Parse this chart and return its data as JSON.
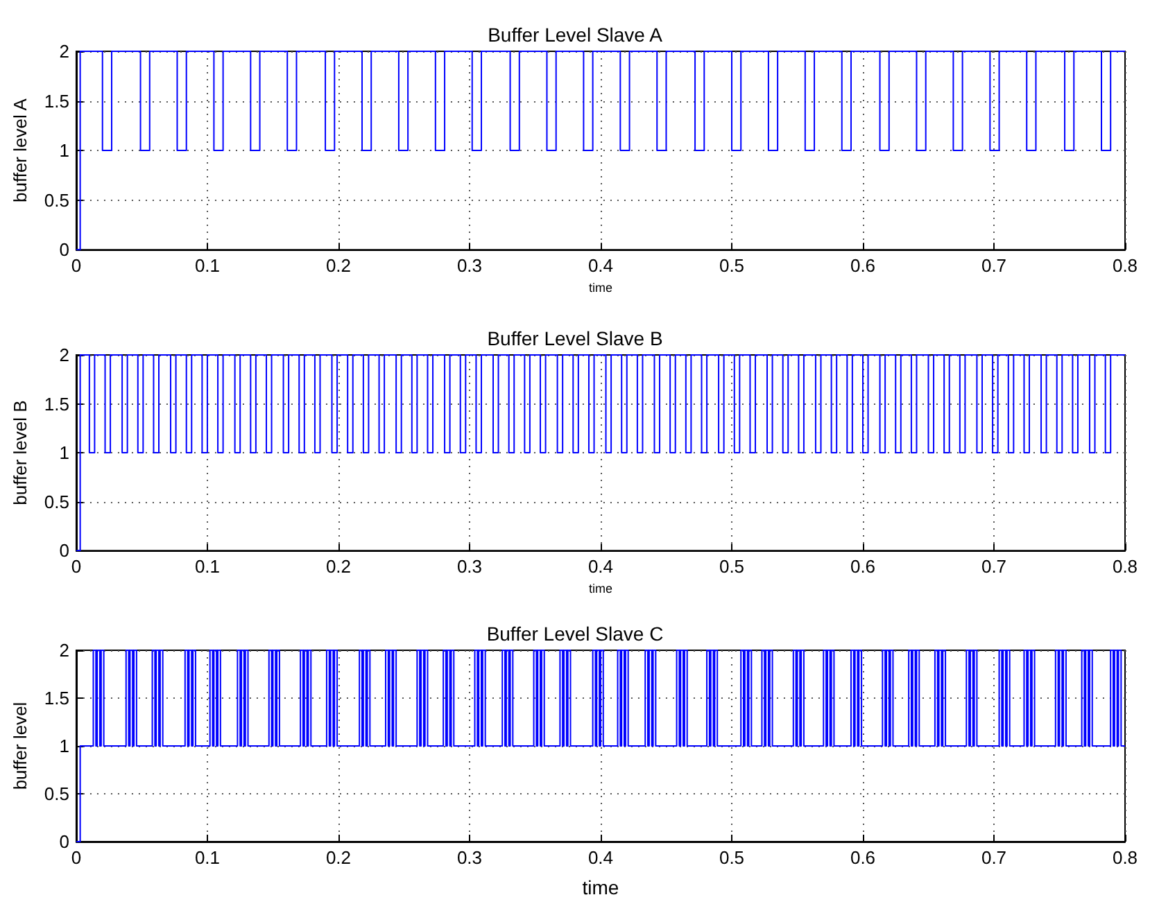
{
  "chart_data": [
    {
      "type": "step",
      "title": "Buffer Level Slave A",
      "xlabel": "time",
      "ylabel": "buffer level A",
      "xlim": [
        0,
        0.8
      ],
      "ylim": [
        0,
        2
      ],
      "xticks": [
        0,
        0.1,
        0.2,
        0.3,
        0.4,
        0.5,
        0.6,
        0.7,
        0.8
      ],
      "yticks": [
        0,
        0.5,
        1,
        1.5,
        2
      ],
      "grid": true,
      "marker": "none",
      "line_style": "solid",
      "x": [
        0,
        0.003,
        0.02,
        0.027,
        0.049,
        0.056,
        0.077,
        0.084,
        0.105,
        0.112,
        0.133,
        0.14,
        0.161,
        0.168,
        0.19,
        0.197,
        0.218,
        0.225,
        0.246,
        0.253,
        0.274,
        0.281,
        0.302,
        0.309,
        0.331,
        0.338,
        0.359,
        0.366,
        0.387,
        0.394,
        0.415,
        0.422,
        0.443,
        0.45,
        0.472,
        0.479,
        0.5,
        0.507,
        0.528,
        0.535,
        0.556,
        0.563,
        0.584,
        0.591,
        0.613,
        0.62,
        0.641,
        0.648,
        0.669,
        0.676,
        0.697,
        0.704,
        0.725,
        0.732,
        0.754,
        0.761,
        0.782,
        0.789,
        0.8
      ],
      "series": [
        {
          "color": "#0000ff",
          "values": [
            0,
            2,
            1,
            2,
            1,
            2,
            1,
            2,
            1,
            2,
            1,
            2,
            1,
            2,
            1,
            2,
            1,
            2,
            1,
            2,
            1,
            2,
            1,
            2,
            1,
            2,
            1,
            2,
            1,
            2,
            1,
            2,
            1,
            2,
            1,
            2,
            1,
            2,
            1,
            2,
            1,
            2,
            1,
            2,
            1,
            2,
            1,
            2,
            1,
            2,
            1,
            2,
            1,
            2,
            1,
            2,
            1,
            2,
            2
          ]
        }
      ]
    },
    {
      "type": "step",
      "title": "Buffer Level Slave B",
      "xlabel": "time",
      "ylabel": "buffer level B",
      "xlim": [
        0,
        0.8
      ],
      "ylim": [
        0,
        2
      ],
      "xticks": [
        0,
        0.1,
        0.2,
        0.3,
        0.4,
        0.5,
        0.6,
        0.7,
        0.8
      ],
      "yticks": [
        0,
        0.5,
        1,
        1.5,
        2
      ],
      "grid": true,
      "marker": "none",
      "line_style": "solid",
      "x": [
        0,
        0.003,
        0.01,
        0.014,
        0.022,
        0.026,
        0.035,
        0.039,
        0.047,
        0.051,
        0.059,
        0.063,
        0.072,
        0.076,
        0.084,
        0.088,
        0.096,
        0.1,
        0.108,
        0.112,
        0.121,
        0.125,
        0.133,
        0.137,
        0.145,
        0.149,
        0.158,
        0.162,
        0.17,
        0.174,
        0.182,
        0.186,
        0.195,
        0.199,
        0.207,
        0.211,
        0.219,
        0.223,
        0.231,
        0.235,
        0.244,
        0.248,
        0.256,
        0.26,
        0.268,
        0.272,
        0.281,
        0.285,
        0.293,
        0.297,
        0.305,
        0.309,
        0.318,
        0.322,
        0.33,
        0.334,
        0.342,
        0.346,
        0.354,
        0.358,
        0.367,
        0.371,
        0.379,
        0.383,
        0.391,
        0.395,
        0.404,
        0.408,
        0.416,
        0.42,
        0.428,
        0.432,
        0.441,
        0.445,
        0.453,
        0.457,
        0.465,
        0.469,
        0.477,
        0.481,
        0.49,
        0.494,
        0.502,
        0.506,
        0.514,
        0.518,
        0.527,
        0.531,
        0.539,
        0.543,
        0.551,
        0.555,
        0.564,
        0.568,
        0.576,
        0.58,
        0.588,
        0.592,
        0.6,
        0.604,
        0.613,
        0.617,
        0.625,
        0.629,
        0.637,
        0.641,
        0.65,
        0.654,
        0.662,
        0.666,
        0.674,
        0.678,
        0.687,
        0.691,
        0.699,
        0.703,
        0.711,
        0.715,
        0.723,
        0.727,
        0.736,
        0.74,
        0.748,
        0.752,
        0.76,
        0.764,
        0.773,
        0.777,
        0.785,
        0.789,
        0.8
      ],
      "series": [
        {
          "color": "#0000ff",
          "values": [
            0,
            2,
            1,
            2,
            1,
            2,
            1,
            2,
            1,
            2,
            1,
            2,
            1,
            2,
            1,
            2,
            1,
            2,
            1,
            2,
            1,
            2,
            1,
            2,
            1,
            2,
            1,
            2,
            1,
            2,
            1,
            2,
            1,
            2,
            1,
            2,
            1,
            2,
            1,
            2,
            1,
            2,
            1,
            2,
            1,
            2,
            1,
            2,
            1,
            2,
            1,
            2,
            1,
            2,
            1,
            2,
            1,
            2,
            1,
            2,
            1,
            2,
            1,
            2,
            1,
            2,
            1,
            2,
            1,
            2,
            1,
            2,
            1,
            2,
            1,
            2,
            1,
            2,
            1,
            2,
            1,
            2,
            1,
            2,
            1,
            2,
            1,
            2,
            1,
            2,
            1,
            2,
            1,
            2,
            1,
            2,
            1,
            2,
            1,
            2,
            1,
            2,
            1,
            2,
            1,
            2,
            1,
            2,
            1,
            2,
            1,
            2,
            1,
            2,
            1,
            2,
            1,
            2,
            1,
            2,
            1,
            2,
            1,
            2,
            1,
            2,
            1,
            2,
            1,
            2,
            2
          ]
        }
      ]
    },
    {
      "type": "step",
      "title": "Buffer Level Slave C",
      "xlabel": "time",
      "ylabel": "buffer level",
      "xlim": [
        0,
        0.8
      ],
      "ylim": [
        0,
        2
      ],
      "xticks": [
        0,
        0.1,
        0.2,
        0.3,
        0.4,
        0.5,
        0.6,
        0.7,
        0.8
      ],
      "yticks": [
        0,
        0.5,
        1,
        1.5,
        2
      ],
      "grid": true,
      "marker": "none",
      "line_style": "solid",
      "x": [
        0,
        0.003,
        0.013,
        0.015,
        0.016,
        0.018,
        0.019,
        0.021,
        0.038,
        0.04,
        0.041,
        0.043,
        0.044,
        0.046,
        0.058,
        0.06,
        0.061,
        0.063,
        0.064,
        0.066,
        0.083,
        0.085,
        0.086,
        0.088,
        0.089,
        0.091,
        0.102,
        0.104,
        0.105,
        0.107,
        0.108,
        0.11,
        0.123,
        0.125,
        0.126,
        0.128,
        0.129,
        0.131,
        0.147,
        0.149,
        0.15,
        0.152,
        0.153,
        0.155,
        0.171,
        0.173,
        0.174,
        0.176,
        0.177,
        0.179,
        0.191,
        0.193,
        0.194,
        0.196,
        0.197,
        0.199,
        0.216,
        0.218,
        0.219,
        0.221,
        0.222,
        0.224,
        0.236,
        0.238,
        0.239,
        0.241,
        0.242,
        0.244,
        0.26,
        0.262,
        0.263,
        0.265,
        0.266,
        0.268,
        0.28,
        0.282,
        0.283,
        0.285,
        0.286,
        0.288,
        0.304,
        0.306,
        0.307,
        0.309,
        0.31,
        0.312,
        0.325,
        0.327,
        0.328,
        0.33,
        0.331,
        0.333,
        0.349,
        0.351,
        0.352,
        0.354,
        0.355,
        0.357,
        0.369,
        0.371,
        0.372,
        0.374,
        0.375,
        0.377,
        0.394,
        0.396,
        0.397,
        0.399,
        0.4,
        0.402,
        0.413,
        0.415,
        0.416,
        0.418,
        0.419,
        0.421,
        0.434,
        0.436,
        0.437,
        0.439,
        0.44,
        0.442,
        0.458,
        0.46,
        0.461,
        0.463,
        0.464,
        0.466,
        0.481,
        0.483,
        0.484,
        0.486,
        0.487,
        0.489,
        0.507,
        0.509,
        0.51,
        0.512,
        0.513,
        0.515,
        0.523,
        0.525,
        0.526,
        0.528,
        0.529,
        0.531,
        0.547,
        0.549,
        0.55,
        0.552,
        0.553,
        0.555,
        0.57,
        0.572,
        0.573,
        0.575,
        0.576,
        0.578,
        0.591,
        0.593,
        0.594,
        0.596,
        0.597,
        0.599,
        0.615,
        0.617,
        0.618,
        0.62,
        0.621,
        0.623,
        0.635,
        0.637,
        0.638,
        0.64,
        0.641,
        0.643,
        0.655,
        0.657,
        0.658,
        0.66,
        0.661,
        0.663,
        0.679,
        0.681,
        0.682,
        0.684,
        0.685,
        0.687,
        0.704,
        0.706,
        0.707,
        0.709,
        0.71,
        0.712,
        0.723,
        0.725,
        0.726,
        0.728,
        0.729,
        0.731,
        0.747,
        0.749,
        0.75,
        0.752,
        0.753,
        0.755,
        0.767,
        0.769,
        0.77,
        0.772,
        0.773,
        0.775,
        0.789,
        0.791,
        0.792,
        0.794,
        0.795,
        0.797,
        0.8
      ],
      "series": [
        {
          "color": "#0000ff",
          "values": [
            0,
            1,
            2,
            1,
            2,
            1,
            2,
            1,
            2,
            1,
            2,
            1,
            2,
            1,
            2,
            1,
            2,
            1,
            2,
            1,
            2,
            1,
            2,
            1,
            2,
            1,
            2,
            1,
            2,
            1,
            2,
            1,
            2,
            1,
            2,
            1,
            2,
            1,
            2,
            1,
            2,
            1,
            2,
            1,
            2,
            1,
            2,
            1,
            2,
            1,
            2,
            1,
            2,
            1,
            2,
            1,
            2,
            1,
            2,
            1,
            2,
            1,
            2,
            1,
            2,
            1,
            2,
            1,
            2,
            1,
            2,
            1,
            2,
            1,
            2,
            1,
            2,
            1,
            2,
            1,
            2,
            1,
            2,
            1,
            2,
            1,
            2,
            1,
            2,
            1,
            2,
            1,
            2,
            1,
            2,
            1,
            2,
            1,
            2,
            1,
            2,
            1,
            2,
            1,
            2,
            1,
            2,
            1,
            2,
            1,
            2,
            1,
            2,
            1,
            2,
            1,
            2,
            1,
            2,
            1,
            2,
            1,
            2,
            1,
            2,
            1,
            2,
            1,
            2,
            1,
            2,
            1,
            2,
            1,
            2,
            1,
            2,
            1,
            2,
            1,
            2,
            1,
            2,
            1,
            2,
            1,
            2,
            1,
            2,
            1,
            2,
            1,
            2,
            1,
            2,
            1,
            2,
            1,
            2,
            1,
            2,
            1,
            2,
            1,
            2,
            1,
            2,
            1,
            2,
            1,
            2,
            1,
            2,
            1,
            2,
            1,
            2,
            1,
            2,
            1,
            2,
            1,
            2,
            1,
            2,
            1,
            2,
            1,
            2,
            1,
            2,
            1,
            2,
            1,
            2,
            1,
            2,
            1,
            2,
            1,
            2,
            1,
            2,
            1,
            2,
            1,
            2,
            1,
            2,
            1,
            2,
            1,
            2,
            1,
            2,
            1,
            2,
            1,
            1
          ]
        }
      ]
    }
  ]
}
